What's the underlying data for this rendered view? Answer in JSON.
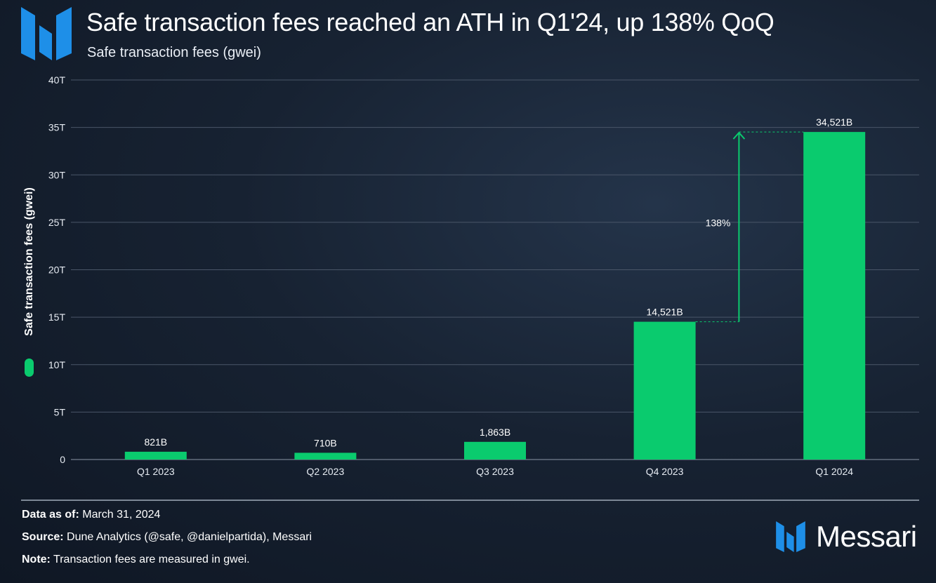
{
  "header": {
    "title": "Safe transaction fees reached an ATH in Q1'24, up 138% QoQ",
    "subtitle": "Safe transaction fees (gwei)"
  },
  "colors": {
    "bar": "#0acb6e",
    "grid": "#4a5668",
    "accent_blue": "#1e8fe8"
  },
  "chart_data": {
    "type": "bar",
    "title": "Safe transaction fees reached an ATH in Q1'24, up 138% QoQ",
    "subtitle": "Safe transaction fees (gwei)",
    "ylabel": "Safe transaction fees (gwei)",
    "xlabel": "",
    "categories": [
      "Q1 2023",
      "Q2 2023",
      "Q3 2023",
      "Q4 2023",
      "Q1 2024"
    ],
    "series": [
      {
        "name": "Safe transaction fees (gwei)",
        "values": [
          821,
          710,
          1863,
          14521,
          34521
        ],
        "labels": [
          "821B",
          "710B",
          "1,863B",
          "14,521B",
          "34,521B"
        ]
      }
    ],
    "value_unit": "billion gwei",
    "ylim": [
      0,
      40000
    ],
    "yticks": [
      0,
      5000,
      10000,
      15000,
      20000,
      25000,
      30000,
      35000,
      40000
    ],
    "ytick_labels": [
      "0",
      "5T",
      "10T",
      "15T",
      "20T",
      "25T",
      "30T",
      "35T",
      "40T"
    ],
    "grid": true,
    "legend": "left",
    "annotations": [
      {
        "type": "arrow",
        "from_category": "Q4 2023",
        "to_category": "Q1 2024",
        "text": "138%"
      }
    ]
  },
  "footer": {
    "data_as_of_label": "Data as of:",
    "data_as_of_value": "March 31, 2024",
    "source_label": "Source:",
    "source_value": "Dune Analytics (@safe, @danielpartida), Messari",
    "note_label": "Note:",
    "note_value": "Transaction fees are measured in gwei."
  },
  "brand": {
    "name": "Messari",
    "logo_icon": "messari-logo-icon"
  }
}
